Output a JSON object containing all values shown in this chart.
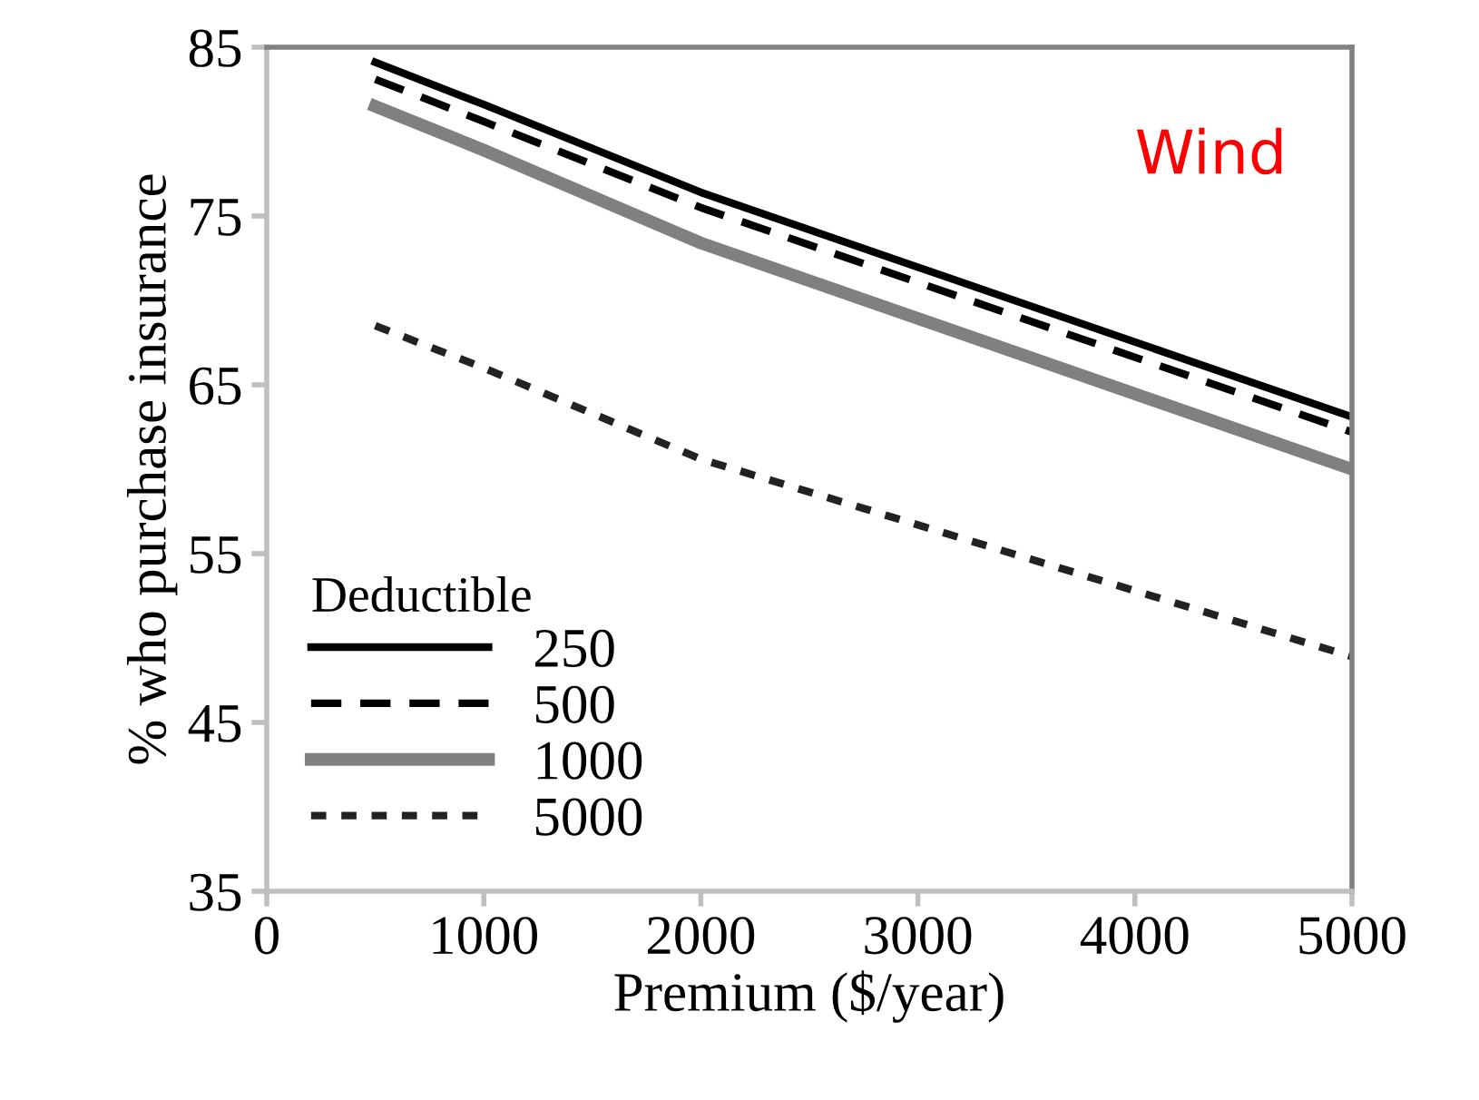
{
  "chart_data": {
    "type": "line",
    "xlabel": "Premium ($/year)",
    "ylabel": "% who purchase insurance",
    "legend_title": "Deductible",
    "annotations": [
      "Wind"
    ],
    "x": [
      500,
      1000,
      2000,
      5000
    ],
    "series": [
      {
        "name": "250",
        "color": "#000000",
        "values": [
          84.1,
          81.6,
          76.4,
          63.1
        ],
        "line_style": "solid"
      },
      {
        "name": "500",
        "color": "#000000",
        "values": [
          83.1,
          80.6,
          75.5,
          62.2
        ],
        "line_style": "dashed"
      },
      {
        "name": "1000",
        "color": "#808080",
        "values": [
          81.5,
          78.9,
          73.4,
          60.0
        ],
        "line_style": "solid"
      },
      {
        "name": "5000",
        "color": "#222222",
        "values": [
          68.5,
          66.0,
          60.6,
          48.9
        ],
        "line_style": "dotted"
      }
    ],
    "xlim": [
      0,
      5000
    ],
    "xticks": [
      0,
      1000,
      2000,
      3000,
      4000,
      5000
    ],
    "ylim": [
      35,
      85
    ],
    "yticks": [
      35,
      45,
      55,
      65,
      75,
      85
    ],
    "grid": false,
    "legend": "bottom left",
    "marker": "none"
  }
}
